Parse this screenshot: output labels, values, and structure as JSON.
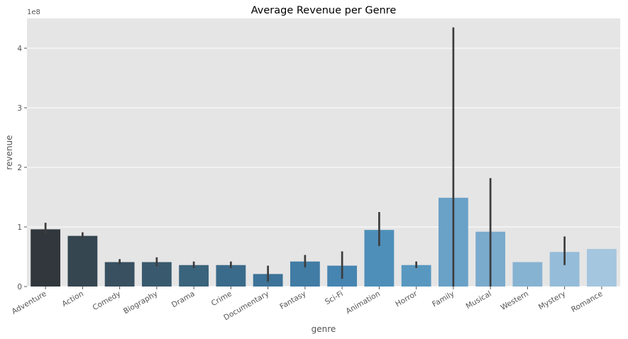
{
  "chart_data": {
    "type": "bar",
    "title": "Average Revenue per Genre",
    "xlabel": "genre",
    "ylabel": "revenue",
    "y_offset_label": "1e8",
    "y_scale": 100000000,
    "ylim": [
      0,
      450000000
    ],
    "yticks": [
      0,
      100000000,
      200000000,
      300000000,
      400000000
    ],
    "ytick_labels": [
      "0",
      "1",
      "2",
      "3",
      "4"
    ],
    "grid": true,
    "categories": [
      "Adventure",
      "Action",
      "Comedy",
      "Biography",
      "Drama",
      "Crime",
      "Documentary",
      "Fantasy",
      "Sci-Fi",
      "Animation",
      "Horror",
      "Family",
      "Musical",
      "Western",
      "Mystery",
      "Romance"
    ],
    "values": [
      96000000,
      85000000,
      41000000,
      41000000,
      36000000,
      36000000,
      21000000,
      42000000,
      35000000,
      95000000,
      36000000,
      149000000,
      92000000,
      41000000,
      58000000,
      63000000
    ],
    "error_low": [
      88000000,
      80000000,
      37000000,
      34000000,
      31000000,
      31000000,
      8000000,
      32000000,
      13000000,
      68000000,
      31000000,
      0,
      0,
      null,
      36000000,
      null
    ],
    "error_high": [
      107000000,
      91000000,
      46000000,
      49000000,
      42000000,
      42000000,
      35000000,
      53000000,
      59000000,
      125000000,
      42000000,
      435000000,
      182000000,
      null,
      84000000,
      null
    ],
    "colors": [
      "#31373d",
      "#364650",
      "#385060",
      "#395a6e",
      "#3a637c",
      "#3b6b8a",
      "#3d7398",
      "#417ca5",
      "#4685b1",
      "#4e8fba",
      "#5898c0",
      "#6aa1c7",
      "#7aaacc",
      "#87b3d2",
      "#95bcd8",
      "#a4c6de"
    ]
  }
}
